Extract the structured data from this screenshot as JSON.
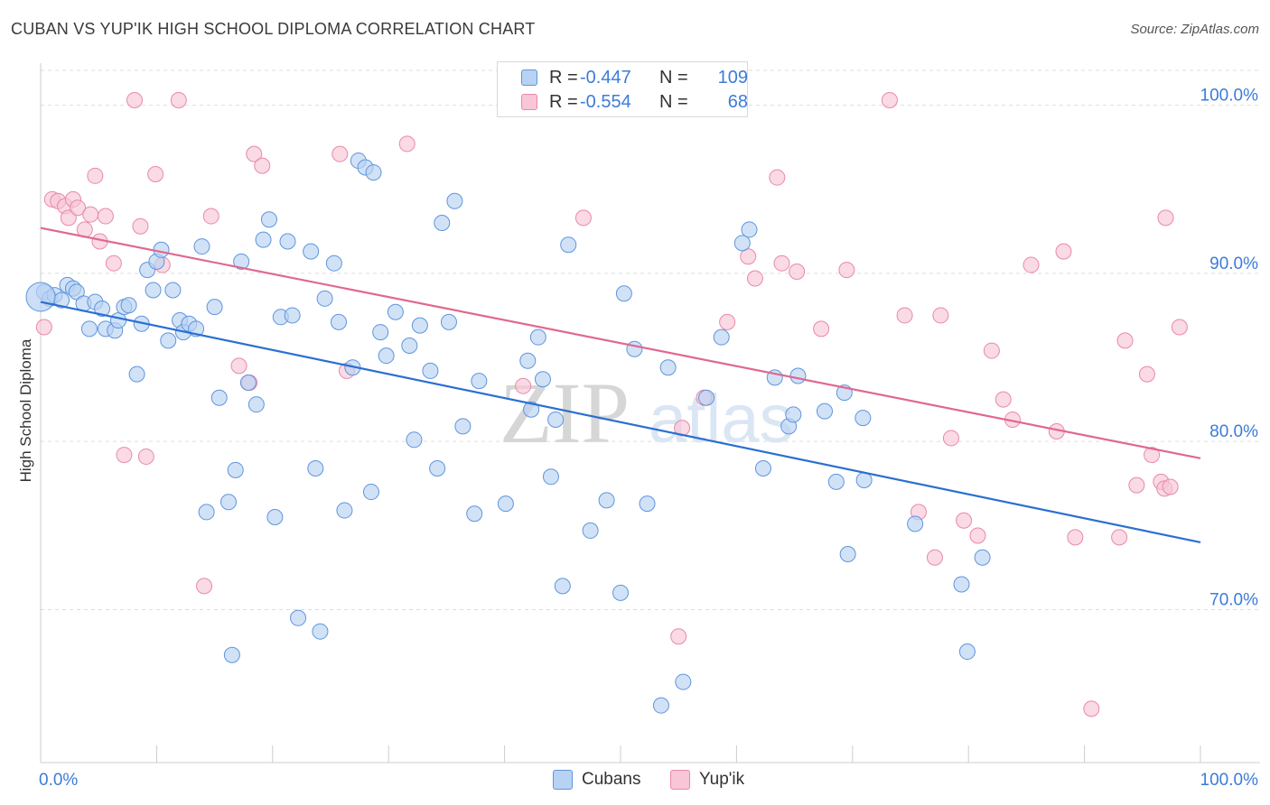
{
  "title": "CUBAN VS YUP'IK HIGH SCHOOL DIPLOMA CORRELATION CHART",
  "source": "Source: ZipAtlas.com",
  "watermark": {
    "zip": "ZIP",
    "atlas": "atlas"
  },
  "colors": {
    "cubans_fill": "#b8d2f3",
    "cubans_stroke": "#5f95dd",
    "cubans_line": "#2a6fd1",
    "yupik_fill": "#f8c6d6",
    "yupik_stroke": "#e989a8",
    "yupik_line": "#e0688f",
    "tick_label": "#3d7bd9",
    "grid": "#dddddd"
  },
  "legend": {
    "rows": [
      {
        "series": "cubans",
        "r_label": "R =",
        "r_value": "-0.447",
        "n_label": "N =",
        "n_value": "109"
      },
      {
        "series": "yupik",
        "r_label": "R =",
        "r_value": "-0.554",
        "n_label": "N =",
        "n_value": "68"
      }
    ]
  },
  "chart_data": {
    "type": "scatter",
    "title": "CUBAN VS YUP'IK HIGH SCHOOL DIPLOMA CORRELATION CHART",
    "xlabel": "",
    "ylabel": "High School Diploma",
    "xlim": [
      0,
      100
    ],
    "ylim": [
      60.9,
      102.5
    ],
    "x_tick_labels": [
      "0.0%",
      "100.0%"
    ],
    "y_ticks": [
      70,
      80,
      90,
      100
    ],
    "y_tick_labels": [
      "70.0%",
      "80.0%",
      "90.0%",
      "100.0%"
    ],
    "series": [
      {
        "name": "Cubans",
        "key": "cubans",
        "trend": {
          "x": [
            0,
            100
          ],
          "y": [
            88.3,
            74.0
          ]
        },
        "points": [
          [
            0.3,
            88.9
          ],
          [
            0.8,
            88.5
          ],
          [
            1.2,
            88.7
          ],
          [
            1.8,
            88.4
          ],
          [
            2.3,
            89.3
          ],
          [
            2.8,
            89.1
          ],
          [
            3.1,
            88.9
          ],
          [
            3.7,
            88.2
          ],
          [
            4.2,
            86.7
          ],
          [
            4.7,
            88.3
          ],
          [
            5.3,
            87.9
          ],
          [
            5.6,
            86.7
          ],
          [
            6.4,
            86.6
          ],
          [
            6.7,
            87.2
          ],
          [
            7.2,
            88.0
          ],
          [
            7.6,
            88.1
          ],
          [
            8.3,
            84.0
          ],
          [
            8.7,
            87.0
          ],
          [
            9.2,
            90.2
          ],
          [
            9.7,
            89.0
          ],
          [
            10.0,
            90.7
          ],
          [
            10.4,
            91.4
          ],
          [
            11.0,
            86.0
          ],
          [
            11.4,
            89.0
          ],
          [
            12.0,
            87.2
          ],
          [
            12.3,
            86.5
          ],
          [
            12.8,
            87.0
          ],
          [
            13.4,
            86.7
          ],
          [
            13.9,
            91.6
          ],
          [
            14.3,
            75.8
          ],
          [
            15.0,
            88.0
          ],
          [
            15.4,
            82.6
          ],
          [
            16.2,
            76.4
          ],
          [
            16.5,
            67.3
          ],
          [
            16.8,
            78.3
          ],
          [
            17.3,
            90.7
          ],
          [
            17.9,
            83.5
          ],
          [
            18.6,
            82.2
          ],
          [
            19.2,
            92.0
          ],
          [
            19.7,
            93.2
          ],
          [
            20.2,
            75.5
          ],
          [
            20.7,
            87.4
          ],
          [
            21.3,
            91.9
          ],
          [
            21.7,
            87.5
          ],
          [
            22.2,
            69.5
          ],
          [
            23.3,
            91.3
          ],
          [
            23.7,
            78.4
          ],
          [
            24.1,
            68.7
          ],
          [
            24.5,
            88.5
          ],
          [
            25.3,
            90.6
          ],
          [
            25.7,
            87.1
          ],
          [
            26.2,
            75.9
          ],
          [
            26.9,
            84.4
          ],
          [
            27.4,
            96.7
          ],
          [
            28.0,
            96.3
          ],
          [
            28.5,
            77.0
          ],
          [
            28.7,
            96.0
          ],
          [
            29.3,
            86.5
          ],
          [
            29.8,
            85.1
          ],
          [
            30.6,
            87.7
          ],
          [
            31.8,
            85.7
          ],
          [
            32.2,
            80.1
          ],
          [
            32.7,
            86.9
          ],
          [
            33.6,
            84.2
          ],
          [
            34.2,
            78.4
          ],
          [
            34.6,
            93.0
          ],
          [
            35.2,
            87.1
          ],
          [
            35.7,
            94.3
          ],
          [
            36.4,
            80.9
          ],
          [
            37.4,
            75.7
          ],
          [
            37.8,
            83.6
          ],
          [
            40.1,
            76.3
          ],
          [
            42.0,
            84.8
          ],
          [
            42.3,
            81.9
          ],
          [
            42.9,
            86.2
          ],
          [
            43.3,
            83.7
          ],
          [
            44.0,
            77.9
          ],
          [
            44.4,
            81.3
          ],
          [
            45.0,
            71.4
          ],
          [
            45.5,
            91.7
          ],
          [
            47.4,
            74.7
          ],
          [
            48.8,
            76.5
          ],
          [
            50.0,
            71.0
          ],
          [
            50.3,
            88.8
          ],
          [
            51.2,
            85.5
          ],
          [
            52.3,
            76.3
          ],
          [
            53.5,
            64.3
          ],
          [
            54.1,
            84.4
          ],
          [
            55.4,
            65.7
          ],
          [
            57.4,
            82.6
          ],
          [
            58.7,
            86.2
          ],
          [
            60.5,
            91.8
          ],
          [
            61.1,
            92.6
          ],
          [
            62.3,
            78.4
          ],
          [
            63.3,
            83.8
          ],
          [
            64.5,
            80.9
          ],
          [
            64.9,
            81.6
          ],
          [
            65.3,
            83.9
          ],
          [
            67.6,
            81.8
          ],
          [
            68.6,
            77.6
          ],
          [
            69.3,
            82.9
          ],
          [
            69.6,
            73.3
          ],
          [
            70.9,
            81.4
          ],
          [
            71.0,
            77.7
          ],
          [
            75.4,
            75.1
          ],
          [
            79.4,
            71.5
          ],
          [
            79.9,
            67.5
          ],
          [
            81.2,
            73.1
          ],
          [
            0.0,
            88.6
          ]
        ]
      },
      {
        "name": "Yup'ik",
        "key": "yupik",
        "trend": {
          "x": [
            0,
            100
          ],
          "y": [
            92.7,
            79.0
          ]
        },
        "points": [
          [
            0.3,
            86.8
          ],
          [
            1.0,
            94.4
          ],
          [
            1.5,
            94.3
          ],
          [
            2.1,
            94.0
          ],
          [
            2.4,
            93.3
          ],
          [
            2.8,
            94.4
          ],
          [
            3.2,
            93.9
          ],
          [
            3.8,
            92.6
          ],
          [
            4.3,
            93.5
          ],
          [
            4.7,
            95.8
          ],
          [
            5.1,
            91.9
          ],
          [
            5.6,
            93.4
          ],
          [
            6.3,
            90.6
          ],
          [
            7.2,
            79.2
          ],
          [
            8.1,
            100.3
          ],
          [
            8.6,
            92.8
          ],
          [
            9.1,
            79.1
          ],
          [
            9.9,
            95.9
          ],
          [
            10.5,
            90.5
          ],
          [
            11.9,
            100.3
          ],
          [
            14.1,
            71.4
          ],
          [
            14.7,
            93.4
          ],
          [
            17.1,
            84.5
          ],
          [
            18.0,
            83.5
          ],
          [
            18.4,
            97.1
          ],
          [
            19.1,
            96.4
          ],
          [
            25.8,
            97.1
          ],
          [
            26.4,
            84.2
          ],
          [
            31.6,
            97.7
          ],
          [
            41.6,
            83.3
          ],
          [
            46.8,
            93.3
          ],
          [
            55.0,
            68.4
          ],
          [
            55.3,
            80.8
          ],
          [
            57.2,
            82.6
          ],
          [
            59.2,
            87.1
          ],
          [
            61.0,
            91.0
          ],
          [
            61.6,
            89.7
          ],
          [
            63.5,
            95.7
          ],
          [
            63.9,
            90.6
          ],
          [
            65.2,
            90.1
          ],
          [
            67.3,
            86.7
          ],
          [
            69.5,
            90.2
          ],
          [
            73.2,
            100.3
          ],
          [
            74.5,
            87.5
          ],
          [
            75.7,
            75.8
          ],
          [
            77.1,
            73.1
          ],
          [
            77.6,
            87.5
          ],
          [
            78.5,
            80.2
          ],
          [
            79.6,
            75.3
          ],
          [
            80.8,
            74.4
          ],
          [
            82.0,
            85.4
          ],
          [
            83.0,
            82.5
          ],
          [
            83.8,
            81.3
          ],
          [
            85.4,
            90.5
          ],
          [
            87.6,
            80.6
          ],
          [
            88.2,
            91.3
          ],
          [
            89.2,
            74.3
          ],
          [
            90.6,
            64.1
          ],
          [
            93.0,
            74.3
          ],
          [
            93.5,
            86.0
          ],
          [
            94.5,
            77.4
          ],
          [
            95.4,
            84.0
          ],
          [
            95.8,
            79.2
          ],
          [
            96.6,
            77.6
          ],
          [
            96.9,
            77.2
          ],
          [
            97.0,
            93.3
          ],
          [
            97.4,
            77.3
          ],
          [
            98.2,
            86.8
          ]
        ]
      }
    ],
    "legend": [
      "Cubans",
      "Yup'ik"
    ]
  }
}
